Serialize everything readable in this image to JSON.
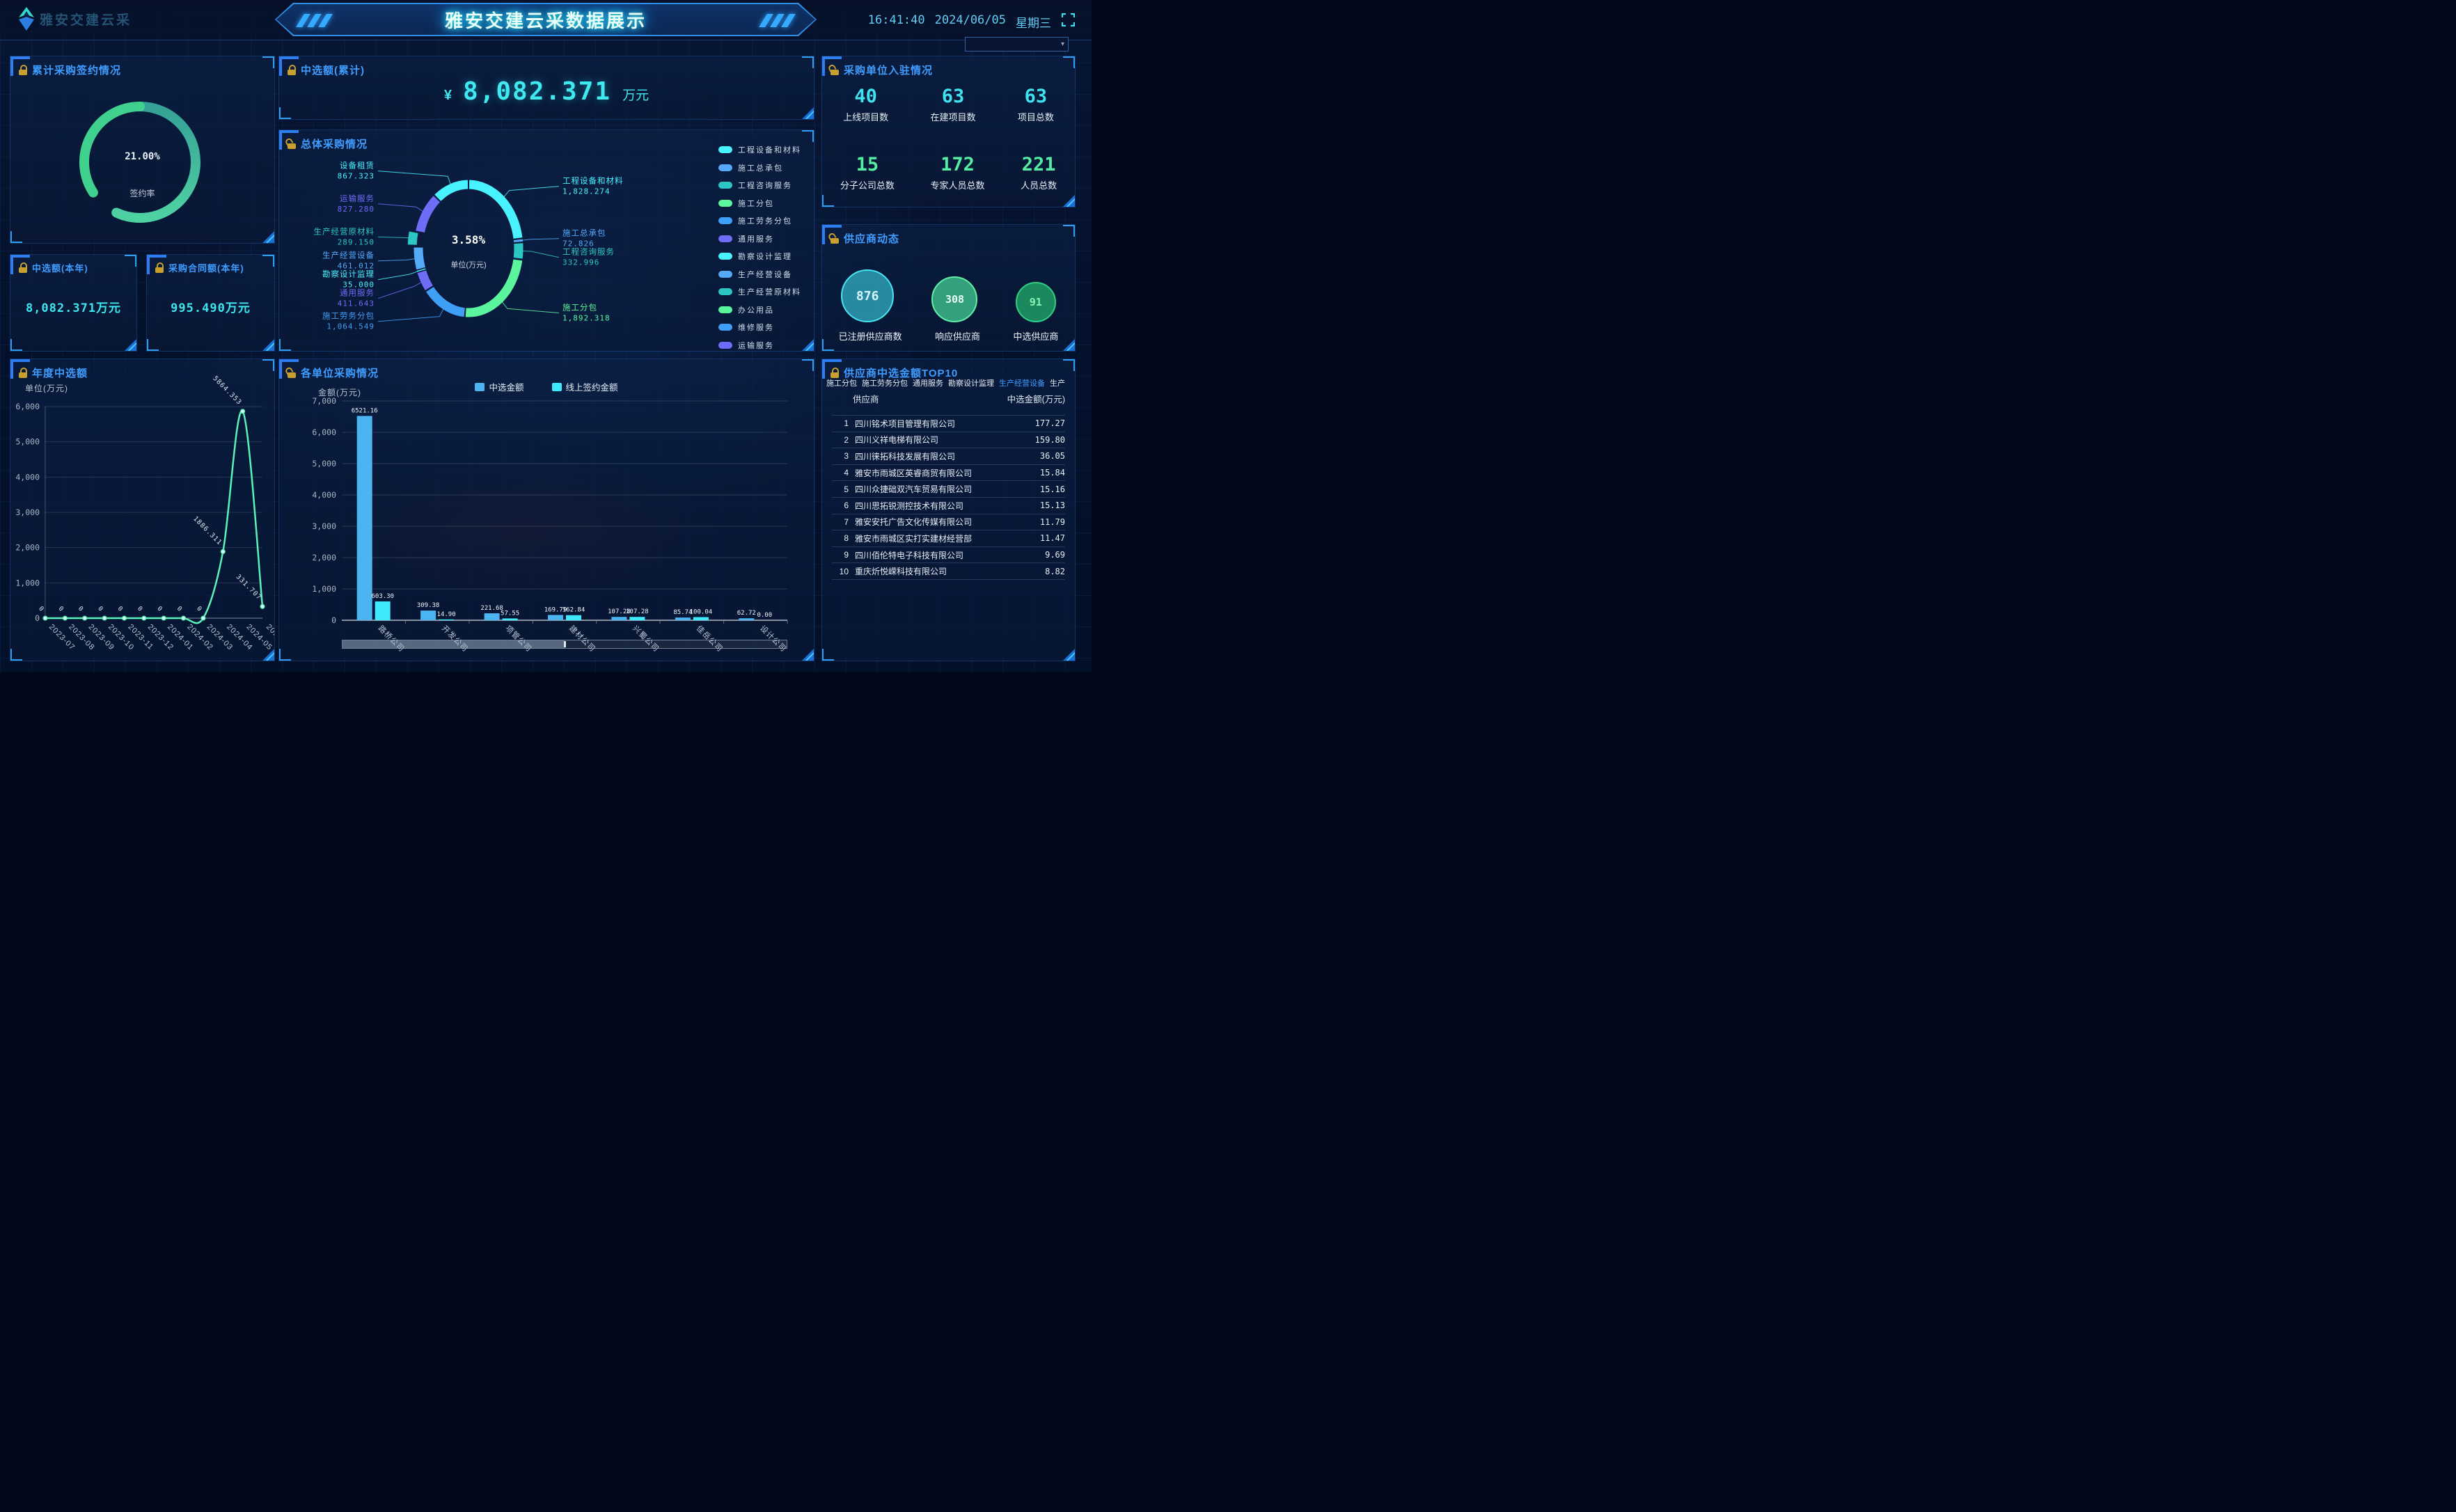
{
  "header": {
    "logo": "雅安交建云采",
    "title": "雅安交建云采数据展示",
    "time": "16:41:40",
    "date": "2024/06/05",
    "weekday": "星期三"
  },
  "region_select": {
    "value": ""
  },
  "panels": {
    "sign": {
      "title": "累计采购签约情况",
      "percent_label": "21.00%",
      "sub_label": "签约率"
    },
    "total": {
      "title": "中选额(累计)",
      "currency": "¥",
      "amount": "8,082.371",
      "unit": "万元"
    },
    "year_amount": {
      "title": "中选额(本年)",
      "value": "8,082.371万元"
    },
    "year_contract": {
      "title": "采购合同额(本年)",
      "value": "995.490万元"
    },
    "annual": {
      "title": "年度中选额"
    },
    "overall": {
      "title": "总体采购情况",
      "center_value": "3.58%",
      "center_label": "单位(万元)"
    },
    "units": {
      "title": "各单位采购情况"
    },
    "purchasers": {
      "title": "采购单位入驻情况",
      "stats": [
        {
          "value": "40",
          "label": "上线项目数",
          "color": "#3fe2ee"
        },
        {
          "value": "63",
          "label": "在建项目数",
          "color": "#3fe2ee"
        },
        {
          "value": "63",
          "label": "项目总数",
          "color": "#3fe2ee"
        },
        {
          "value": "15",
          "label": "分子公司总数",
          "color": "#55eda3"
        },
        {
          "value": "172",
          "label": "专家人员总数",
          "color": "#55eda3"
        },
        {
          "value": "221",
          "label": "人员总数",
          "color": "#55eda3"
        }
      ]
    },
    "suppliers": {
      "title": "供应商动态",
      "circles": [
        {
          "value": "876",
          "label": "已注册供应商数",
          "diameter": 76,
          "fill": "rgba(46,159,179,0.85)",
          "stroke": "#46e5f2",
          "text": "#d6f6ff"
        },
        {
          "value": "308",
          "label": "响应供应商",
          "diameter": 66,
          "fill": "rgba(60,185,139,0.85)",
          "stroke": "#5df0a6",
          "text": "#eafff3"
        },
        {
          "value": "91",
          "label": "中选供应商",
          "diameter": 58,
          "fill": "rgba(30,156,100,0.85)",
          "stroke": "#33cf85",
          "text": "#8df2b4"
        }
      ]
    },
    "top10": {
      "title": "供应商中选金额TOP10",
      "tabs": [
        {
          "label": "施工分包"
        },
        {
          "label": "施工劳务分包"
        },
        {
          "label": "通用服务"
        },
        {
          "label": "勘察设计监理"
        },
        {
          "label": "生产经营设备",
          "active": true
        },
        {
          "label": "生产"
        }
      ],
      "columns": {
        "supplier": "供应商",
        "amount": "中选金额(万元)"
      },
      "rows": [
        {
          "rank": "1",
          "name": "四川铭术项目管理有限公司",
          "amount": "177.27"
        },
        {
          "rank": "2",
          "name": "四川义祥电梯有限公司",
          "amount": "159.80"
        },
        {
          "rank": "3",
          "name": "四川徕拓科技发展有限公司",
          "amount": "36.05"
        },
        {
          "rank": "4",
          "name": "雅安市雨城区英睿商贸有限公司",
          "amount": "15.84"
        },
        {
          "rank": "5",
          "name": "四川众捷础双汽车贸易有限公司",
          "amount": "15.16"
        },
        {
          "rank": "6",
          "name": "四川思拓锐测控技术有限公司",
          "amount": "15.13"
        },
        {
          "rank": "7",
          "name": "雅安安托广告文化传媒有限公司",
          "amount": "11.79"
        },
        {
          "rank": "8",
          "name": "雅安市雨城区实打实建材经营部",
          "amount": "11.47"
        },
        {
          "rank": "9",
          "name": "四川佰伦特电子科技有限公司",
          "amount": "9.69"
        },
        {
          "rank": "10",
          "name": "重庆炘悦嵘科技有限公司",
          "amount": "8.82"
        }
      ]
    }
  },
  "chart_data": [
    {
      "id": "sign_gauge",
      "type": "gauge",
      "value": 21.0,
      "display": "21.00%",
      "label": "签约率",
      "colors": {
        "main_start": "#35a096",
        "main_end": "#4fd2a2",
        "accent": "#41d18e"
      }
    },
    {
      "id": "overall_pie",
      "type": "pie",
      "title": "总体采购情况",
      "unit": "万元",
      "center": {
        "percent": "3.58%",
        "label": "单位(万元)"
      },
      "selected": "生产经营原材料",
      "items": [
        {
          "name": "工程设备和材料",
          "value": 1828.274,
          "color": "#49f2ff"
        },
        {
          "name": "施工总承包",
          "value": 72.826,
          "color": "#55aaf8"
        },
        {
          "name": "工程咨询服务",
          "value": 332.996,
          "color": "#2cc7c4"
        },
        {
          "name": "施工分包",
          "value": 1892.318,
          "color": "#5bf59d"
        },
        {
          "name": "施工劳务分包",
          "value": 1064.549,
          "color": "#3f9ef5"
        },
        {
          "name": "通用服务",
          "value": 411.643,
          "color": "#6f6cf7"
        },
        {
          "name": "勘察设计监理",
          "value": 35.0,
          "color": "#49f2ff"
        },
        {
          "name": "生产经营设备",
          "value": 461.012,
          "color": "#55aaf8"
        },
        {
          "name": "生产经营原材料",
          "value": 289.15,
          "color": "#2cc7c4"
        },
        {
          "name": "办公用品",
          "value": 0,
          "color": "#5bf59d"
        },
        {
          "name": "维修服务",
          "value": 0,
          "color": "#3f9ef5"
        },
        {
          "name": "运输服务",
          "value": 827.28,
          "color": "#6f6cf7"
        },
        {
          "name": "设备租赁",
          "value": 867.323,
          "color": "#49f2ff"
        }
      ]
    },
    {
      "id": "annual_line",
      "type": "line",
      "title": "年度中选额",
      "ylabel": "单位(万元)",
      "ylim": [
        0,
        6000
      ],
      "yticks": [
        0,
        1000,
        2000,
        3000,
        4000,
        5000,
        6000
      ],
      "color": "#5bf2ba",
      "x": [
        "2023-07",
        "2023-08",
        "2023-09",
        "2023-10",
        "2023-11",
        "2023-12",
        "2024-01",
        "2024-02",
        "2024-03",
        "2024-04",
        "2024-05",
        "2024-06"
      ],
      "values": [
        0,
        0,
        0,
        0,
        0,
        0,
        0,
        0,
        0,
        1886.311,
        5864.353,
        331.707
      ]
    },
    {
      "id": "units_bar",
      "type": "bar",
      "title": "各单位采购情况",
      "ylabel": "金额(万元)",
      "ylim": [
        0,
        7000
      ],
      "yticks": [
        0,
        1000,
        2000,
        3000,
        4000,
        5000,
        6000,
        7000
      ],
      "categories": [
        "路桥公司",
        "开发公司",
        "项管公司",
        "建材公司",
        "兴蜀公司",
        "佳岳公司",
        "设计公司"
      ],
      "series": [
        {
          "name": "中选金额",
          "color": "#4db4f2",
          "values": [
            6521.16,
            309.38,
            221.68,
            169.79,
            107.28,
            85.74,
            62.72
          ]
        },
        {
          "name": "线上签约金额",
          "color": "#3fe9fc",
          "values": [
            603.3,
            14.9,
            57.55,
            162.84,
            107.28,
            100.04,
            0.0
          ]
        }
      ]
    }
  ]
}
